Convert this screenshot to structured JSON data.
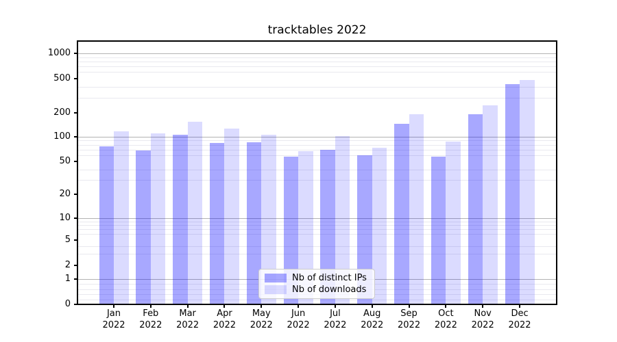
{
  "title": "tracktables 2022",
  "chart_data": {
    "type": "bar",
    "title": "tracktables 2022",
    "categories": [
      "Jan",
      "Feb",
      "Mar",
      "Apr",
      "May",
      "Jun",
      "Jul",
      "Aug",
      "Sep",
      "Oct",
      "Nov",
      "Dec"
    ],
    "category_year": "2022",
    "series": [
      {
        "name": "Nb of distinct IPs",
        "color": "rgba(0,0,255,0.34)",
        "color_hex_on_white": "#a9a9f8",
        "values": [
          76,
          68,
          106,
          84,
          86,
          57,
          70,
          59,
          145,
          57,
          190,
          435
        ]
      },
      {
        "name": "Nb of downloads",
        "color": "rgba(0,0,255,0.14)",
        "color_hex_on_white": "#dcdcf8",
        "values": [
          117,
          110,
          155,
          126,
          107,
          67,
          101,
          73,
          191,
          87,
          245,
          485
        ]
      }
    ],
    "yscale": "symlog",
    "ylim": [
      0,
      2000
    ],
    "yticks": [
      0,
      1,
      2,
      5,
      10,
      20,
      50,
      100,
      200,
      500,
      1000
    ],
    "minor_gridline_values": [
      0.2,
      0.4,
      0.6,
      0.8,
      3,
      4,
      6,
      7,
      8,
      9,
      30,
      40,
      60,
      70,
      80,
      90,
      300,
      400,
      600,
      700,
      800,
      900
    ],
    "major_gridline_values": [
      1,
      10,
      100,
      1000
    ],
    "grid": true,
    "legend_position": "lower center",
    "colors": {
      "major_grid": "#b2b2b2",
      "minor_grid": "#e9e9ef",
      "spine": "#000000",
      "text": "#000000"
    }
  }
}
